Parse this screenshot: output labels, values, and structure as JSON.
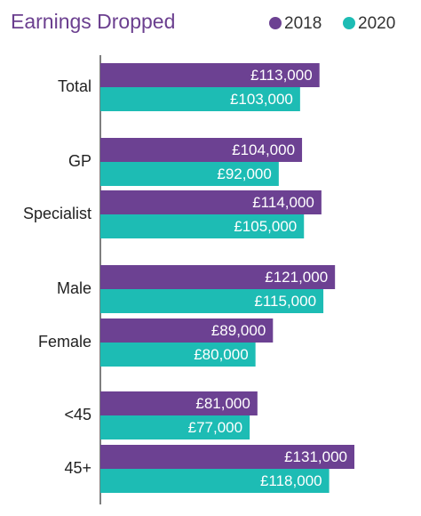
{
  "chart_data": {
    "type": "barh",
    "title": "Earnings Dropped",
    "categories": [
      "Total",
      "GP",
      "Specialist",
      "Male",
      "Female",
      "<45",
      "45+"
    ],
    "series": [
      {
        "name": "2018",
        "color": "#6c4192",
        "values": [
          113000,
          104000,
          114000,
          121000,
          89000,
          81000,
          131000
        ],
        "value_labels": [
          "£113,000",
          "£104,000",
          "£114,000",
          "£121,000",
          "£89,000",
          "£81,000",
          "£131,000"
        ]
      },
      {
        "name": "2020",
        "color": "#1dbcb4",
        "values": [
          103000,
          92000,
          105000,
          115000,
          80000,
          77000,
          118000
        ],
        "value_labels": [
          "£103,000",
          "£92,000",
          "£105,000",
          "£115,000",
          "£80,000",
          "£77,000",
          "£118,000"
        ]
      }
    ]
  }
}
